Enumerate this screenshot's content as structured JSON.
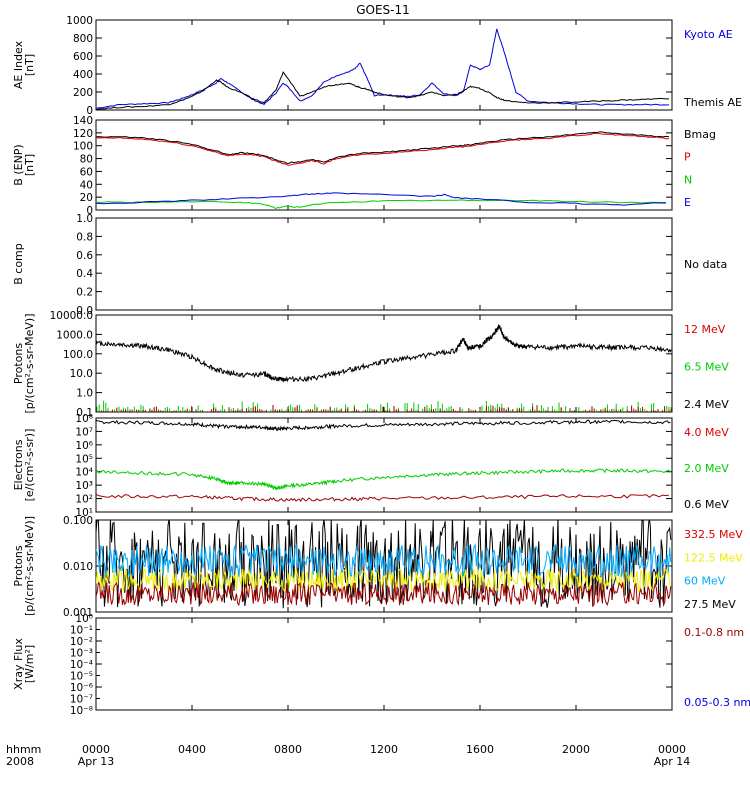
{
  "title": "GOES-11",
  "footer": {
    "hhmm": "hhmm",
    "year": "2008"
  },
  "x_axis": {
    "range_hours": [
      0,
      24
    ],
    "ticks": [
      {
        "hour": 0,
        "label": "0000",
        "date": "Apr 13"
      },
      {
        "hour": 4,
        "label": "0400",
        "date": ""
      },
      {
        "hour": 8,
        "label": "0800",
        "date": ""
      },
      {
        "hour": 12,
        "label": "1200",
        "date": ""
      },
      {
        "hour": 16,
        "label": "1600",
        "date": ""
      },
      {
        "hour": 20,
        "label": "2000",
        "date": ""
      },
      {
        "hour": 24,
        "label": "0000",
        "date": "Apr 14"
      }
    ]
  },
  "colors": {
    "black": "#000000",
    "blue": "#0000dd",
    "red": "#dd0000",
    "green": "#00cc00",
    "darkred": "#990000",
    "yellow": "#eeee00",
    "cyan": "#00aaff"
  },
  "chart_data": [
    {
      "type": "line",
      "ylabel_lines": [
        "AE Index",
        "[nT]"
      ],
      "yscale": "linear",
      "ylim": [
        0,
        1000
      ],
      "yticks": [
        0,
        200,
        400,
        600,
        800,
        1000
      ],
      "yticklabels": [
        "0",
        "200",
        "400",
        "600",
        "800",
        "1000"
      ],
      "series": [
        {
          "name": "Kyoto AE",
          "color": "blue",
          "x": [
            0,
            1,
            2,
            3,
            3.5,
            4,
            4.5,
            5,
            5.2,
            5.5,
            6,
            6.5,
            7,
            7.5,
            7.8,
            8,
            8.5,
            9,
            9.5,
            10,
            10.5,
            10.8,
            11,
            11.3,
            11.6,
            12,
            12.5,
            13,
            13.5,
            14,
            14.5,
            15,
            15.3,
            15.6,
            16,
            16.4,
            16.7,
            17,
            17.5,
            18,
            19,
            20,
            21,
            22,
            23,
            24
          ],
          "y": [
            20,
            60,
            70,
            80,
            120,
            170,
            230,
            300,
            350,
            300,
            210,
            120,
            60,
            190,
            300,
            260,
            100,
            160,
            310,
            380,
            420,
            460,
            520,
            350,
            160,
            170,
            160,
            150,
            170,
            300,
            180,
            160,
            200,
            500,
            450,
            500,
            900,
            650,
            200,
            100,
            80,
            70,
            60,
            60,
            60,
            60
          ]
        },
        {
          "name": "Themis AE",
          "color": "black",
          "x": [
            0,
            1,
            2,
            3,
            3.5,
            4,
            4.5,
            5,
            5.2,
            5.5,
            6,
            6.5,
            7,
            7.5,
            7.8,
            8,
            8.5,
            9,
            9.5,
            10,
            10.5,
            10.8,
            11,
            11.3,
            11.6,
            12,
            12.5,
            13,
            13.5,
            14,
            14.5,
            15,
            15.3,
            15.6,
            16,
            16.4,
            16.7,
            17,
            17.5,
            18,
            19,
            20,
            21,
            22,
            23,
            24
          ],
          "y": [
            10,
            30,
            40,
            60,
            100,
            150,
            220,
            330,
            310,
            250,
            200,
            130,
            80,
            220,
            420,
            350,
            150,
            200,
            260,
            280,
            300,
            270,
            250,
            230,
            200,
            170,
            150,
            140,
            160,
            200,
            160,
            170,
            210,
            260,
            240,
            190,
            140,
            110,
            90,
            80,
            80,
            90,
            100,
            110,
            120,
            130
          ]
        }
      ],
      "legend": [
        {
          "text": "Kyoto AE",
          "color": "blue"
        },
        {
          "text": "Themis AE",
          "color": "black"
        }
      ]
    },
    {
      "type": "line",
      "ylabel_lines": [
        "B (ENP)",
        "[nT]"
      ],
      "yscale": "linear",
      "ylim": [
        0,
        140
      ],
      "yticks": [
        0,
        20,
        40,
        60,
        80,
        100,
        120,
        140
      ],
      "yticklabels": [
        "0",
        "20",
        "40",
        "60",
        "80",
        "100",
        "120",
        "140"
      ],
      "series": [
        {
          "name": "Bmag",
          "color": "black",
          "x": [
            0,
            1,
            2,
            3,
            4,
            5,
            5.5,
            6,
            6.5,
            7,
            7.5,
            8,
            8.5,
            9,
            9.5,
            10,
            11,
            12,
            13,
            14,
            15,
            15.5,
            16,
            17,
            18,
            19,
            20,
            21,
            22,
            23,
            24
          ],
          "y": [
            114,
            114,
            112,
            108,
            102,
            92,
            86,
            89,
            88,
            85,
            78,
            73,
            75,
            79,
            74,
            82,
            88,
            90,
            93,
            96,
            100,
            101,
            104,
            109,
            112,
            114,
            118,
            121,
            118,
            116,
            113
          ]
        },
        {
          "name": "P",
          "color": "red",
          "x": [
            0,
            1,
            2,
            3,
            4,
            5,
            5.5,
            6,
            6.5,
            7,
            7.5,
            8,
            8.5,
            9,
            9.5,
            10,
            11,
            12,
            13,
            14,
            15,
            15.5,
            16,
            17,
            18,
            19,
            20,
            21,
            22,
            23,
            24
          ],
          "y": [
            112,
            112,
            110,
            106,
            100,
            90,
            84,
            87,
            86,
            83,
            76,
            70,
            73,
            77,
            72,
            80,
            86,
            88,
            91,
            94,
            98,
            99,
            102,
            107,
            110,
            112,
            116,
            119,
            116,
            114,
            111
          ]
        },
        {
          "name": "N",
          "color": "green",
          "x": [
            0,
            2,
            4,
            6,
            7,
            7.5,
            8,
            8.5,
            9,
            10,
            12,
            14,
            16,
            18,
            20,
            22,
            24
          ],
          "y": [
            12,
            12,
            13,
            12,
            9,
            3,
            6,
            4,
            8,
            12,
            14,
            15,
            15,
            15,
            13,
            12,
            11
          ]
        },
        {
          "name": "E",
          "color": "blue",
          "x": [
            0,
            2,
            4,
            6,
            8,
            9,
            10,
            12,
            14,
            14.5,
            15,
            16,
            18,
            20,
            22,
            24
          ],
          "y": [
            10,
            12,
            15,
            18,
            22,
            25,
            26,
            24,
            21,
            24,
            19,
            17,
            12,
            10,
            8,
            12
          ]
        }
      ],
      "legend": [
        {
          "text": "Bmag",
          "color": "black"
        },
        {
          "text": "P",
          "color": "red"
        },
        {
          "text": "N",
          "color": "green"
        },
        {
          "text": "E",
          "color": "blue"
        }
      ]
    },
    {
      "type": "empty",
      "ylabel_lines": [
        "B comp"
      ],
      "yscale": "linear",
      "ylim": [
        0,
        1
      ],
      "yticks": [
        0,
        0.2,
        0.4,
        0.6,
        0.8,
        1.0
      ],
      "yticklabels": [
        "0.0",
        "0.2",
        "0.4",
        "0.6",
        "0.8",
        "1.0"
      ],
      "series": [],
      "legend": [
        {
          "text": "No data",
          "color": "black"
        }
      ]
    },
    {
      "type": "line",
      "ylabel_lines": [
        "Protons",
        "[p/(cm²-s-sr-MeV)]"
      ],
      "yscale": "log",
      "ylim": [
        0.1,
        10000
      ],
      "yticks": [
        0.1,
        1,
        10,
        100,
        1000,
        10000
      ],
      "yticklabels": [
        "0.1",
        "1.0",
        "10.0",
        "100.0",
        "1000.0",
        "10000.0"
      ],
      "series": [
        {
          "name": "12 MeV",
          "color": "black",
          "x": [
            0,
            1,
            2,
            3,
            4,
            5,
            6,
            7,
            7.5,
            8,
            9,
            10,
            11,
            12,
            13,
            14,
            15,
            15.3,
            15.5,
            16,
            16.5,
            16.8,
            17,
            17.5,
            18,
            19,
            20,
            21,
            22,
            23,
            24
          ],
          "y": [
            350,
            300,
            250,
            160,
            70,
            15,
            8,
            9,
            5,
            5,
            5,
            10,
            20,
            40,
            60,
            90,
            150,
            600,
            200,
            250,
            800,
            2500,
            700,
            250,
            220,
            200,
            250,
            220,
            210,
            200,
            150
          ]
        },
        {
          "name": "6.5 MeV",
          "color": "green",
          "noise": "spikes",
          "base": 0.1,
          "peak": 0.45
        },
        {
          "name": "2.4 MeV",
          "color": "darkred",
          "noise": "spikes",
          "base": 0.1,
          "peak": 0.25
        }
      ],
      "legend": [
        {
          "text": "12 MeV",
          "color": "red"
        },
        {
          "text": "6.5 MeV",
          "color": "green"
        },
        {
          "text": "2.4 MeV",
          "color": "black"
        }
      ]
    },
    {
      "type": "line",
      "ylabel_lines": [
        "Electrons",
        "[e/(cm²-s-sr)]"
      ],
      "yscale": "log",
      "ylim": [
        10,
        100000000
      ],
      "yticks": [
        10,
        100,
        1000,
        10000,
        100000,
        1000000,
        10000000,
        100000000
      ],
      "yticklabels": [
        "10¹",
        "10²",
        "10³",
        "10⁴",
        "10⁵",
        "10⁶",
        "10⁷",
        "10⁸"
      ],
      "series": [
        {
          "name": "4.0 MeV",
          "color": "black",
          "x": [
            0,
            2,
            4,
            5,
            6,
            7,
            7.5,
            8,
            9,
            10,
            12,
            14,
            16,
            18,
            20,
            22,
            24
          ],
          "y": [
            50000000,
            45000000,
            35000000,
            25000000,
            22000000,
            20000000,
            15000000,
            17000000,
            20000000,
            25000000,
            30000000,
            35000000,
            40000000,
            45000000,
            50000000,
            55000000,
            45000000
          ]
        },
        {
          "name": "2.0 MeV",
          "color": "green",
          "x": [
            0,
            2,
            4,
            5,
            5.5,
            6,
            7,
            7.5,
            8,
            9,
            10,
            12,
            14,
            16,
            18,
            20,
            22,
            24
          ],
          "y": [
            10000,
            8000,
            6000,
            3000,
            1500,
            1500,
            1200,
            600,
            900,
            1200,
            2000,
            4000,
            6000,
            8000,
            10000,
            12000,
            12000,
            10000
          ]
        },
        {
          "name": "0.6 MeV",
          "color": "darkred",
          "x": [
            0,
            4,
            6,
            8,
            10,
            12,
            16,
            20,
            24
          ],
          "y": [
            150,
            140,
            100,
            80,
            90,
            100,
            120,
            150,
            150
          ]
        }
      ],
      "legend": [
        {
          "text": "4.0 MeV",
          "color": "red"
        },
        {
          "text": "2.0 MeV",
          "color": "green"
        },
        {
          "text": "0.6 MeV",
          "color": "black"
        }
      ]
    },
    {
      "type": "line",
      "ylabel_lines": [
        "Protons",
        "[p/(cm²-s-sr-MeV)]"
      ],
      "yscale": "log",
      "ylim": [
        0.001,
        0.1
      ],
      "yticks": [
        0.001,
        0.01,
        0.1
      ],
      "yticklabels": [
        "0.001",
        "0.010",
        "0.100"
      ],
      "series": [
        {
          "name": "332.5 MeV",
          "color": "black",
          "noise": "band",
          "base": 0.012,
          "spread": 1.0
        },
        {
          "name": "122.5 MeV",
          "color": "yellow",
          "noise": "band",
          "base": 0.005,
          "spread": 0.25
        },
        {
          "name": "60 MeV",
          "color": "cyan",
          "noise": "band",
          "base": 0.013,
          "spread": 0.35
        },
        {
          "name": "27.5 MeV",
          "color": "darkred",
          "noise": "band",
          "base": 0.0025,
          "spread": 0.25
        }
      ],
      "legend": [
        {
          "text": "332.5 MeV",
          "color": "red"
        },
        {
          "text": "122.5 MeV",
          "color": "yellow"
        },
        {
          "text": "60 MeV",
          "color": "cyan"
        },
        {
          "text": "27.5 MeV",
          "color": "black"
        }
      ]
    },
    {
      "type": "empty",
      "ylabel_lines": [
        "Xray Flux",
        "[W/m²]"
      ],
      "yscale": "log",
      "ylim": [
        1e-08,
        1
      ],
      "yticks": [
        1e-08,
        1e-06,
        0.0001,
        0.01,
        1
      ],
      "yticklabels": [
        "10⁻⁸",
        "10⁻⁶",
        "10⁻⁴",
        "10⁻²",
        "10⁰"
      ],
      "minor_ticks": [
        1e-07,
        1e-05,
        0.001,
        0.1
      ],
      "minor_labels": [
        "10⁻⁷",
        "10⁻⁵",
        "10⁻³",
        "10⁻¹"
      ],
      "series": [],
      "legend": [
        {
          "text": "0.1-0.8 nm",
          "color": "darkred"
        },
        {
          "text": "0.05-0.3 nm",
          "color": "blue"
        }
      ]
    }
  ]
}
